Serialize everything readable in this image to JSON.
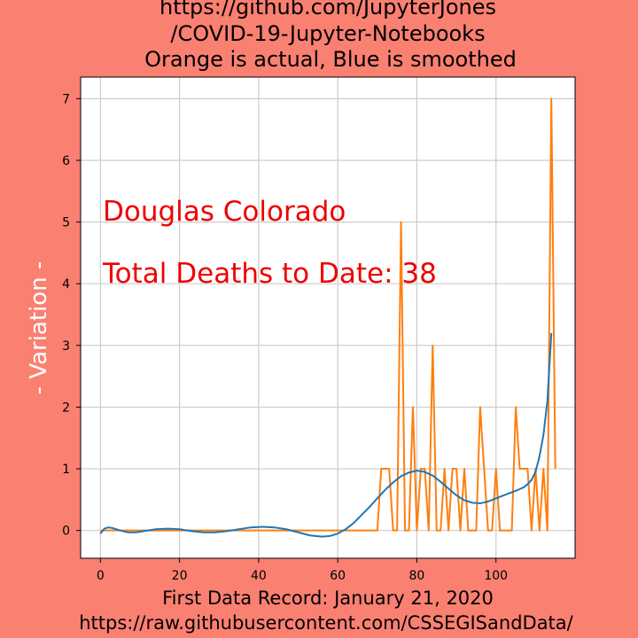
{
  "title_lines": [
    "https://github.com/JupyterJones",
    "/COVID-19-Jupyter-Notebooks",
    "Orange is actual, Blue is smoothed"
  ],
  "xlabel_lines": [
    "First Data Record: January 21, 2020",
    "https://raw.githubusercontent.com/CSSEGISandData/"
  ],
  "ylabel": "- Variation -",
  "annotations": {
    "county": "Douglas Colorado",
    "total": "Total Deaths to Date: 38",
    "color": "#ee0000"
  },
  "colors": {
    "background": "#fa8072",
    "plot_area": "#ffffff",
    "grid": "#cccccc",
    "actual": "#ff7f0e",
    "smoothed": "#1f77b4"
  },
  "chart_data": {
    "type": "line",
    "xlim": [
      -5,
      120
    ],
    "ylim": [
      -0.45,
      7.35
    ],
    "xticks": [
      0,
      20,
      40,
      60,
      80,
      100
    ],
    "yticks": [
      0,
      1,
      2,
      3,
      4,
      5,
      6,
      7
    ],
    "grid": true,
    "series": [
      {
        "role": "actual",
        "x_start": 0,
        "values": [
          0,
          0,
          0,
          0,
          0,
          0,
          0,
          0,
          0,
          0,
          0,
          0,
          0,
          0,
          0,
          0,
          0,
          0,
          0,
          0,
          0,
          0,
          0,
          0,
          0,
          0,
          0,
          0,
          0,
          0,
          0,
          0,
          0,
          0,
          0,
          0,
          0,
          0,
          0,
          0,
          0,
          0,
          0,
          0,
          0,
          0,
          0,
          0,
          0,
          0,
          0,
          0,
          0,
          0,
          0,
          0,
          0,
          0,
          0,
          0,
          0,
          0,
          0,
          0,
          0,
          0,
          0,
          0,
          0,
          0,
          0,
          1,
          1,
          1,
          0,
          0,
          5,
          0,
          0,
          2,
          0,
          1,
          1,
          0,
          3,
          0,
          0,
          1,
          0,
          1,
          1,
          0,
          1,
          0,
          0,
          0,
          2,
          1,
          0,
          0,
          1,
          0,
          0,
          0,
          0,
          2,
          1,
          1,
          1,
          0,
          1,
          0,
          1,
          0,
          7,
          1
        ]
      },
      {
        "role": "smoothed",
        "points": [
          [
            0,
            -0.05
          ],
          [
            1,
            0.03
          ],
          [
            2,
            0.05
          ],
          [
            3,
            0.04
          ],
          [
            5,
            0.0
          ],
          [
            7,
            -0.03
          ],
          [
            9,
            -0.03
          ],
          [
            11,
            -0.01
          ],
          [
            14,
            0.02
          ],
          [
            17,
            0.03
          ],
          [
            20,
            0.02
          ],
          [
            23,
            -0.01
          ],
          [
            26,
            -0.03
          ],
          [
            29,
            -0.03
          ],
          [
            32,
            -0.01
          ],
          [
            35,
            0.02
          ],
          [
            38,
            0.05
          ],
          [
            41,
            0.06
          ],
          [
            44,
            0.05
          ],
          [
            47,
            0.02
          ],
          [
            50,
            -0.03
          ],
          [
            53,
            -0.08
          ],
          [
            56,
            -0.1
          ],
          [
            58,
            -0.09
          ],
          [
            60,
            -0.05
          ],
          [
            62,
            0.02
          ],
          [
            64,
            0.12
          ],
          [
            66,
            0.25
          ],
          [
            68,
            0.38
          ],
          [
            70,
            0.52
          ],
          [
            72,
            0.66
          ],
          [
            74,
            0.78
          ],
          [
            76,
            0.88
          ],
          [
            78,
            0.94
          ],
          [
            80,
            0.97
          ],
          [
            82,
            0.95
          ],
          [
            84,
            0.89
          ],
          [
            86,
            0.79
          ],
          [
            88,
            0.68
          ],
          [
            90,
            0.57
          ],
          [
            92,
            0.49
          ],
          [
            94,
            0.45
          ],
          [
            96,
            0.44
          ],
          [
            98,
            0.47
          ],
          [
            100,
            0.52
          ],
          [
            102,
            0.57
          ],
          [
            104,
            0.62
          ],
          [
            106,
            0.67
          ],
          [
            107,
            0.7
          ],
          [
            108,
            0.75
          ],
          [
            109,
            0.82
          ],
          [
            110,
            0.95
          ],
          [
            111,
            1.2
          ],
          [
            112,
            1.55
          ],
          [
            113,
            2.1
          ],
          [
            114,
            3.2
          ]
        ]
      }
    ]
  }
}
